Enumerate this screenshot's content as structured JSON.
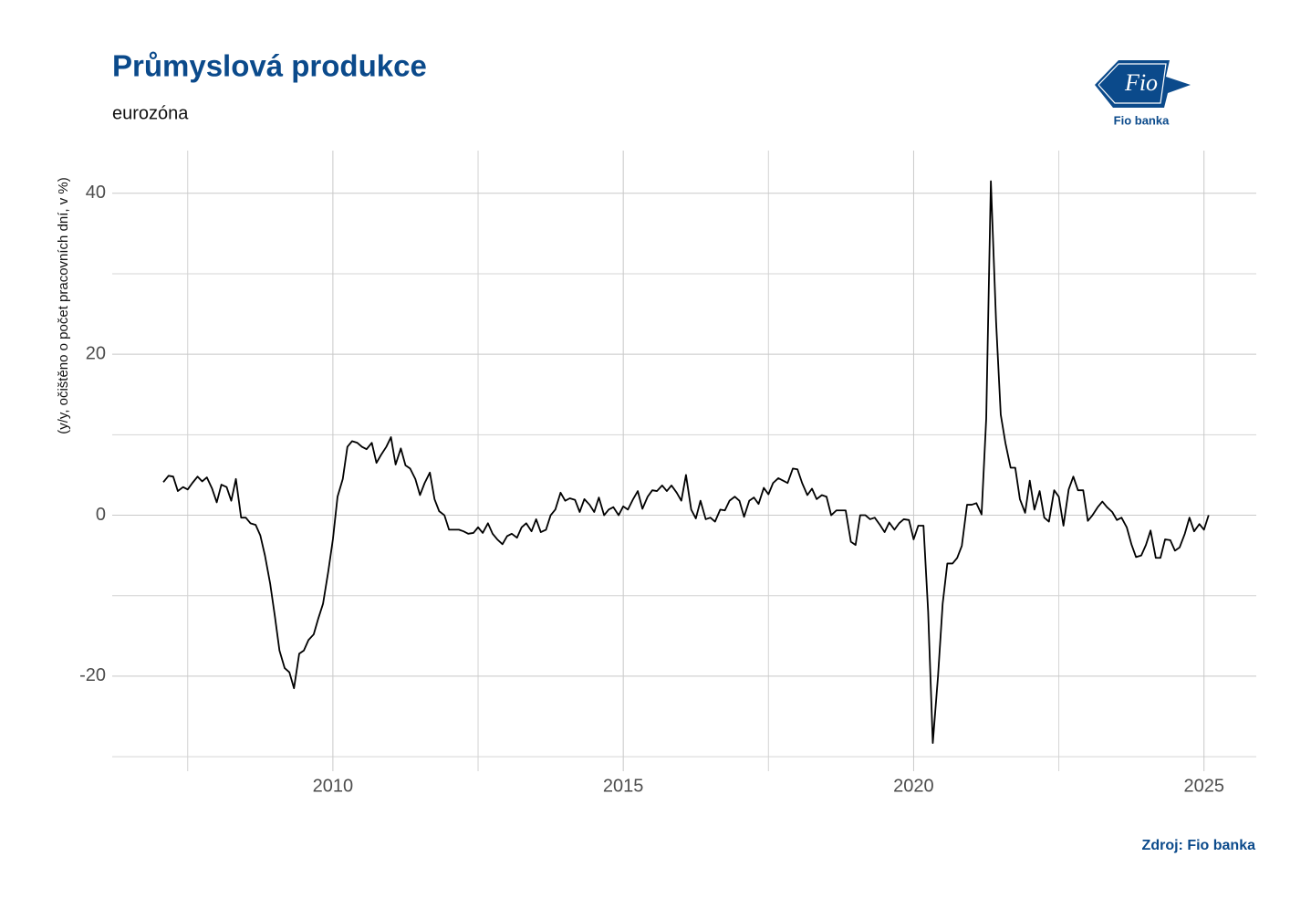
{
  "chart_data": {
    "type": "line",
    "title": "Průmyslová produkce",
    "subtitle": "eurozóna",
    "y_label": "(y/y, očištěno o počet pracovních dní, v %)",
    "source": "Zdroj: Fio banka",
    "logo_mark": "Fio",
    "logo_text": "Fio banka",
    "color": "#000000",
    "grid": true,
    "xlim": [
      2006.2,
      2025.9
    ],
    "ylim": [
      -30.1,
      45.3
    ],
    "xticks": [
      2010,
      2015,
      2020,
      2025
    ],
    "yticks": [
      -20,
      0,
      20,
      40
    ],
    "x": [
      2007.08,
      2007.17,
      2007.25,
      2007.33,
      2007.42,
      2007.5,
      2007.58,
      2007.67,
      2007.75,
      2007.83,
      2007.92,
      2008,
      2008.08,
      2008.17,
      2008.25,
      2008.33,
      2008.42,
      2008.5,
      2008.58,
      2008.67,
      2008.75,
      2008.83,
      2008.92,
      2009,
      2009.08,
      2009.17,
      2009.25,
      2009.33,
      2009.42,
      2009.5,
      2009.58,
      2009.67,
      2009.75,
      2009.83,
      2009.92,
      2010,
      2010.08,
      2010.17,
      2010.25,
      2010.33,
      2010.42,
      2010.5,
      2010.58,
      2010.67,
      2010.75,
      2010.83,
      2010.92,
      2011,
      2011.08,
      2011.17,
      2011.25,
      2011.33,
      2011.42,
      2011.5,
      2011.58,
      2011.67,
      2011.75,
      2011.83,
      2011.92,
      2012,
      2012.08,
      2012.17,
      2012.25,
      2012.33,
      2012.42,
      2012.5,
      2012.58,
      2012.67,
      2012.75,
      2012.83,
      2012.92,
      2013,
      2013.08,
      2013.17,
      2013.25,
      2013.33,
      2013.42,
      2013.5,
      2013.58,
      2013.67,
      2013.75,
      2013.83,
      2013.92,
      2014,
      2014.08,
      2014.17,
      2014.25,
      2014.33,
      2014.42,
      2014.5,
      2014.58,
      2014.67,
      2014.75,
      2014.83,
      2014.92,
      2015,
      2015.08,
      2015.17,
      2015.25,
      2015.33,
      2015.42,
      2015.5,
      2015.58,
      2015.67,
      2015.75,
      2015.83,
      2015.92,
      2016,
      2016.08,
      2016.17,
      2016.25,
      2016.33,
      2016.42,
      2016.5,
      2016.58,
      2016.67,
      2016.75,
      2016.83,
      2016.92,
      2017,
      2017.08,
      2017.17,
      2017.25,
      2017.33,
      2017.42,
      2017.5,
      2017.58,
      2017.67,
      2017.75,
      2017.83,
      2017.92,
      2018,
      2018.08,
      2018.17,
      2018.25,
      2018.33,
      2018.42,
      2018.5,
      2018.58,
      2018.67,
      2018.75,
      2018.83,
      2018.92,
      2019,
      2019.08,
      2019.17,
      2019.25,
      2019.33,
      2019.42,
      2019.5,
      2019.58,
      2019.67,
      2019.75,
      2019.83,
      2019.92,
      2020,
      2020.08,
      2020.17,
      2020.25,
      2020.33,
      2020.42,
      2020.5,
      2020.58,
      2020.67,
      2020.75,
      2020.83,
      2020.92,
      2021,
      2021.08,
      2021.17,
      2021.25,
      2021.33,
      2021.42,
      2021.5,
      2021.58,
      2021.67,
      2021.75,
      2021.83,
      2021.92,
      2022,
      2022.08,
      2022.17,
      2022.25,
      2022.33,
      2022.42,
      2022.5,
      2022.58,
      2022.67,
      2022.75,
      2022.83,
      2022.92,
      2023,
      2023.08,
      2023.17,
      2023.25,
      2023.33,
      2023.42,
      2023.5,
      2023.58,
      2023.67,
      2023.75,
      2023.83,
      2023.92,
      2024,
      2024.08,
      2024.17,
      2024.25,
      2024.33,
      2024.42,
      2024.5,
      2024.58,
      2024.67,
      2024.75,
      2024.83,
      2024.92,
      2025,
      2025.08
    ],
    "values": [
      4.1,
      4.9,
      4.8,
      3.0,
      3.5,
      3.2,
      4.0,
      4.8,
      4.2,
      4.7,
      3.3,
      1.6,
      3.8,
      3.5,
      1.8,
      4.5,
      -0.3,
      -0.3,
      -1.0,
      -1.2,
      -2.5,
      -5.0,
      -8.5,
      -12.5,
      -16.8,
      -19.0,
      -19.5,
      -21.5,
      -17.2,
      -16.8,
      -15.5,
      -14.8,
      -12.8,
      -11.0,
      -7.0,
      -3.0,
      2.3,
      4.5,
      8.5,
      9.2,
      9.0,
      8.5,
      8.2,
      9.0,
      6.5,
      7.5,
      8.5,
      9.7,
      6.3,
      8.3,
      6.2,
      5.8,
      4.5,
      2.5,
      4.0,
      5.3,
      2.0,
      0.5,
      0.0,
      -1.8,
      -1.8,
      -1.8,
      -2.0,
      -2.3,
      -2.2,
      -1.5,
      -2.2,
      -1.0,
      -2.3,
      -3.0,
      -3.6,
      -2.6,
      -2.3,
      -2.8,
      -1.5,
      -1.0,
      -2.0,
      -0.5,
      -2.1,
      -1.8,
      0.0,
      0.7,
      2.8,
      1.8,
      2.1,
      1.9,
      0.4,
      2.0,
      1.3,
      0.4,
      2.2,
      0.0,
      0.7,
      1.0,
      0.0,
      1.1,
      0.7,
      2.0,
      3.0,
      0.8,
      2.3,
      3.1,
      3.0,
      3.7,
      3.0,
      3.7,
      2.8,
      1.8,
      5.0,
      0.7,
      -0.4,
      1.8,
      -0.5,
      -0.3,
      -0.8,
      0.7,
      0.6,
      1.8,
      2.3,
      1.8,
      -0.2,
      1.8,
      2.2,
      1.4,
      3.4,
      2.6,
      4.0,
      4.6,
      4.3,
      4.0,
      5.8,
      5.7,
      4.0,
      2.5,
      3.3,
      2.0,
      2.5,
      2.3,
      0.0,
      0.6,
      0.6,
      0.6,
      -3.3,
      -3.7,
      0.0,
      0.0,
      -0.5,
      -0.3,
      -1.2,
      -2.1,
      -0.9,
      -1.8,
      -1.0,
      -0.5,
      -0.6,
      -3.0,
      -1.3,
      -1.3,
      -12.0,
      -28.3,
      -20.0,
      -11.0,
      -6.0,
      -6.0,
      -5.3,
      -3.8,
      1.3,
      1.3,
      1.5,
      0.1,
      12.0,
      41.5,
      24.0,
      12.5,
      9.0,
      5.9,
      5.9,
      2.0,
      0.3,
      4.3,
      0.7,
      3.0,
      -0.3,
      -0.8,
      3.1,
      2.3,
      -1.3,
      3.2,
      4.8,
      3.1,
      3.1,
      -0.7,
      0.0,
      1.0,
      1.7,
      1.0,
      0.4,
      -0.6,
      -0.3,
      -1.5,
      -3.6,
      -5.2,
      -5.0,
      -3.7,
      -1.9,
      -5.3,
      -5.3,
      -3.0,
      -3.1,
      -4.4,
      -4.0,
      -2.3,
      -0.3,
      -2.0,
      -1.1,
      -1.8,
      0.0
    ]
  }
}
